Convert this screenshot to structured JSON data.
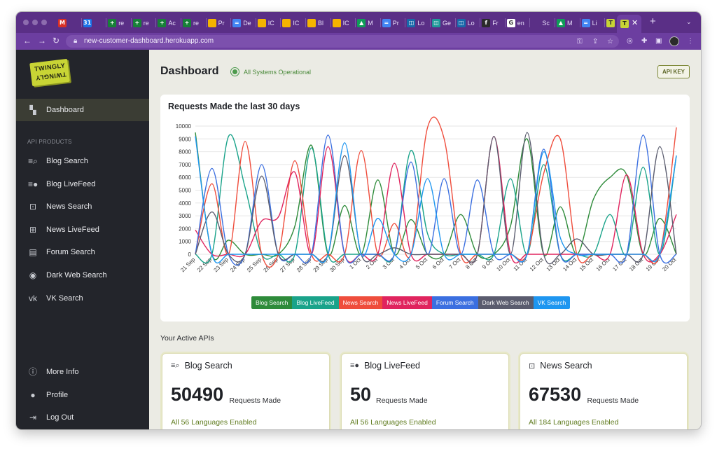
{
  "browser": {
    "tabs": [
      {
        "icon": "gmail-icon",
        "color": "#d93025",
        "glyph": "M",
        "text": ""
      },
      {
        "icon": "calendar-icon",
        "color": "#1a73e8",
        "glyph": "31",
        "text": ""
      },
      {
        "icon": "sheets-icon",
        "color": "#188038",
        "glyph": "+",
        "text": "re"
      },
      {
        "icon": "sheets-icon",
        "color": "#188038",
        "glyph": "+",
        "text": "re"
      },
      {
        "icon": "sheets-icon",
        "color": "#188038",
        "glyph": "+",
        "text": "Ac"
      },
      {
        "icon": "sheets-icon",
        "color": "#188038",
        "glyph": "+",
        "text": "re"
      },
      {
        "icon": "slides-icon",
        "color": "#f4b400",
        "glyph": "",
        "text": "Pr"
      },
      {
        "icon": "docs-icon",
        "color": "#4285f4",
        "glyph": "=",
        "text": "De"
      },
      {
        "icon": "slides-icon",
        "color": "#f4b400",
        "glyph": "",
        "text": "IC"
      },
      {
        "icon": "slides-icon",
        "color": "#f4b400",
        "glyph": "",
        "text": "IC"
      },
      {
        "icon": "slides-icon",
        "color": "#f4b400",
        "glyph": "",
        "text": "Bl"
      },
      {
        "icon": "slides-icon",
        "color": "#f4b400",
        "glyph": "",
        "text": "IC"
      },
      {
        "icon": "drive-icon",
        "color": "#0f9d58",
        "glyph": "▲",
        "text": "M"
      },
      {
        "icon": "docs-icon",
        "color": "#4285f4",
        "glyph": "=",
        "text": "Pr"
      },
      {
        "icon": "loop-icon",
        "color": "#1769aa",
        "glyph": "◫",
        "text": "Lo"
      },
      {
        "icon": "loop-icon",
        "color": "#1f9a9a",
        "glyph": "◫",
        "text": "Ge"
      },
      {
        "icon": "loop-icon",
        "color": "#1769aa",
        "glyph": "◫",
        "text": "Lo"
      },
      {
        "icon": "figma-icon",
        "color": "#2b2b2b",
        "glyph": "f",
        "text": "Fr"
      },
      {
        "icon": "google-icon",
        "color": "#ffffff",
        "glyph": "G",
        "text": "en"
      },
      {
        "icon": "apple-icon",
        "color": "#5a2f86",
        "glyph": "",
        "text": "Sc"
      },
      {
        "icon": "drive-icon",
        "color": "#0f9d58",
        "glyph": "▲",
        "text": "M"
      },
      {
        "icon": "docs-icon",
        "color": "#4285f4",
        "glyph": "=",
        "text": "Li"
      },
      {
        "icon": "twingly-icon",
        "color": "#c8d435",
        "glyph": "T",
        "text": "Tv"
      }
    ],
    "active_tab_icon": "twingly-icon",
    "url": "new-customer-dashboard.herokuapp.com"
  },
  "sidebar": {
    "logo_top": "TWINGLY",
    "logo_bottom": "TWINGLY",
    "dashboard_label": "Dashboard",
    "section_title": "API PRODUCTS",
    "products": [
      {
        "label": "Blog Search",
        "icon": "blog-search-icon",
        "glyph": "≡⌕"
      },
      {
        "label": "Blog LiveFeed",
        "icon": "blog-livefeed-icon",
        "glyph": "≡●"
      },
      {
        "label": "News Search",
        "icon": "news-search-icon",
        "glyph": "⊡"
      },
      {
        "label": "News LiveFeed",
        "icon": "news-livefeed-icon",
        "glyph": "⊞"
      },
      {
        "label": "Forum Search",
        "icon": "forum-search-icon",
        "glyph": "▤"
      },
      {
        "label": "Dark Web Search",
        "icon": "dark-web-search-icon",
        "glyph": "◉"
      },
      {
        "label": "VK Search",
        "icon": "vk-icon",
        "glyph": "vk"
      }
    ],
    "footer": [
      {
        "label": "More Info",
        "icon": "info-icon",
        "glyph": "ⓘ"
      },
      {
        "label": "Profile",
        "icon": "profile-icon",
        "glyph": "●"
      },
      {
        "label": "Log Out",
        "icon": "logout-icon",
        "glyph": "⇥"
      }
    ]
  },
  "header": {
    "title": "Dashboard",
    "status": "All Systems Operational",
    "api_key_button": "API KEY"
  },
  "chart_data": {
    "type": "line",
    "title": "Requests Made the last 30 days",
    "xlabel": "",
    "ylabel": "",
    "ylim": [
      0,
      10000
    ],
    "yticks": [
      0,
      1000,
      2000,
      3000,
      4000,
      5000,
      6000,
      7000,
      8000,
      9000,
      10000
    ],
    "grid": true,
    "legend_position": "bottom",
    "categories": [
      "21 Sep",
      "22 Sep",
      "23 Sep",
      "24 Sep",
      "25 Sep",
      "26 Sep",
      "27 Sep",
      "28 Sep",
      "29 Sep",
      "30 Sep",
      "1 Oct",
      "2 Oct",
      "3 Oct",
      "4 Oct",
      "5 Oct",
      "6 Oct",
      "7 Oct",
      "8 Oct",
      "9 Oct",
      "10 Oct",
      "11 Oct",
      "12 Oct",
      "13 Oct",
      "14 Oct",
      "15 Oct",
      "16 Oct",
      "17 Oct",
      "18 Oct",
      "19 Oct",
      "20 Oct"
    ],
    "series": [
      {
        "name": "Blog Search",
        "color": "#2e8b3a",
        "values": [
          9500,
          0,
          1100,
          0,
          0,
          0,
          2200,
          8500,
          0,
          3800,
          0,
          5800,
          0,
          2700,
          0,
          0,
          3100,
          0,
          0,
          2200,
          9000,
          0,
          3700,
          0,
          4300,
          6000,
          6200,
          0,
          2800,
          0
        ]
      },
      {
        "name": "Blog LiveFeed",
        "color": "#1aa38a",
        "values": [
          0,
          0,
          9200,
          5200,
          0,
          0,
          0,
          8300,
          0,
          0,
          0,
          0,
          0,
          8100,
          1600,
          0,
          0,
          0,
          0,
          5900,
          0,
          7000,
          0,
          0,
          0,
          3100,
          0,
          6800,
          0,
          7700
        ]
      },
      {
        "name": "News Search",
        "color": "#ef4d3c",
        "values": [
          0,
          5500,
          0,
          8800,
          0,
          0,
          7300,
          0,
          0,
          0,
          8100,
          0,
          2400,
          0,
          9900,
          9000,
          0,
          0,
          0,
          0,
          0,
          6300,
          9000,
          0,
          0,
          0,
          0,
          0,
          0,
          9900
        ]
      },
      {
        "name": "News LiveFeed",
        "color": "#e0245e",
        "values": [
          1900,
          0,
          0,
          0,
          2600,
          2900,
          6400,
          0,
          8400,
          0,
          0,
          0,
          7100,
          0,
          0,
          0,
          0,
          0,
          9200,
          0,
          0,
          0,
          0,
          0,
          0,
          0,
          6200,
          0,
          0,
          3100
        ]
      },
      {
        "name": "Forum Search",
        "color": "#3b6fe0",
        "values": [
          0,
          6700,
          0,
          0,
          7000,
          0,
          0,
          0,
          9300,
          0,
          0,
          0,
          0,
          7200,
          0,
          5900,
          0,
          5800,
          0,
          0,
          0,
          8200,
          0,
          0,
          0,
          0,
          0,
          9300,
          0,
          0
        ]
      },
      {
        "name": "Dark Web Search",
        "color": "#5a5c6e",
        "values": [
          0,
          3300,
          0,
          0,
          6100,
          0,
          0,
          0,
          0,
          7700,
          0,
          0,
          500,
          0,
          0,
          0,
          0,
          0,
          9200,
          0,
          9500,
          0,
          0,
          1200,
          0,
          0,
          0,
          0,
          8400,
          0
        ]
      },
      {
        "name": "VK Search",
        "color": "#1e96f0",
        "values": [
          9200,
          0,
          0,
          0,
          0,
          0,
          0,
          0,
          0,
          8700,
          0,
          2800,
          0,
          0,
          5900,
          0,
          0,
          0,
          0,
          0,
          0,
          8000,
          1300,
          0,
          0,
          0,
          0,
          0,
          0,
          7700
        ]
      }
    ]
  },
  "active_apis": {
    "section_title": "Your Active APIs",
    "cards": [
      {
        "title": "Blog Search",
        "icon": "blog-search-icon",
        "glyph": "≡⌕",
        "count": "50490",
        "count_label": "Requests Made",
        "languages": "All 56 Languages Enabled"
      },
      {
        "title": "Blog LiveFeed",
        "icon": "blog-livefeed-icon",
        "glyph": "≡●",
        "count": "50",
        "count_label": "Requests Made",
        "languages": "All 56 Languages Enabled"
      },
      {
        "title": "News Search",
        "icon": "news-search-icon",
        "glyph": "⊡",
        "count": "67530",
        "count_label": "Requests Made",
        "languages": "All 184 Languages Enabled"
      }
    ]
  }
}
